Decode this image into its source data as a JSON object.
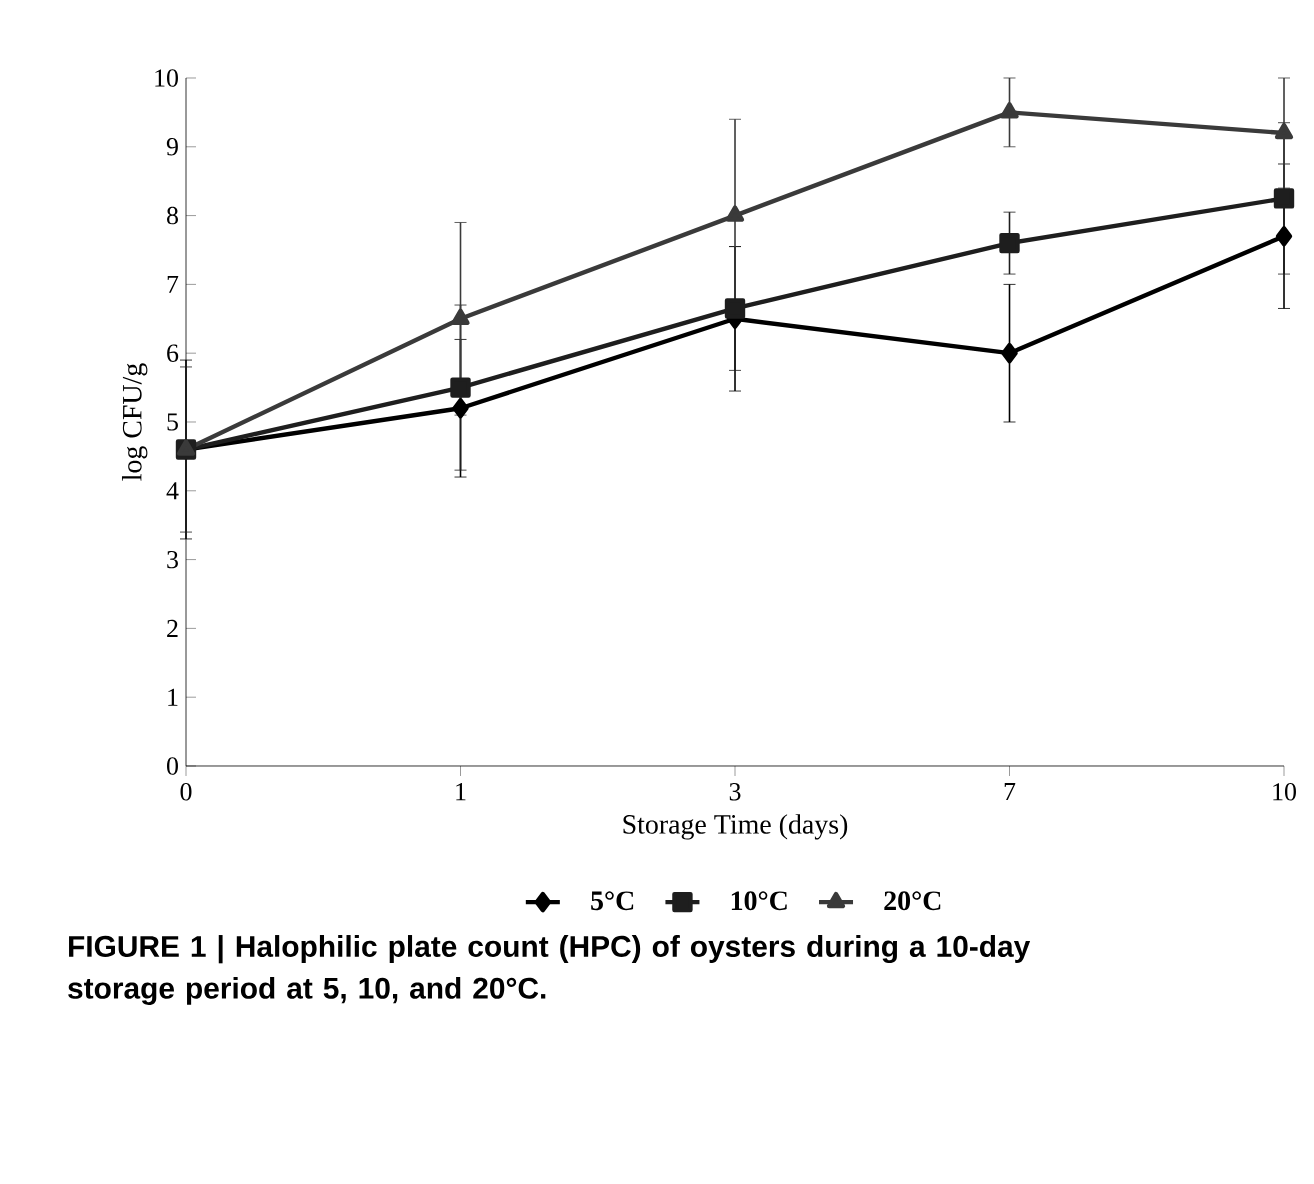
{
  "chart_data": {
    "type": "line",
    "xlabel": "Storage Time (days)",
    "ylabel": "log CFU/g",
    "categories": [
      "0",
      "1",
      "3",
      "7",
      "10"
    ],
    "ylim": [
      0,
      10
    ],
    "yticks": [
      0,
      1,
      2,
      3,
      4,
      5,
      6,
      7,
      8,
      9,
      10
    ],
    "legend": "bottom",
    "grid": false,
    "line_style": "solid",
    "series": [
      {
        "name": "5°C",
        "color": "#000000",
        "marker": "diamond",
        "values": [
          4.6,
          5.2,
          6.5,
          6.0,
          7.7
        ],
        "errors": [
          1.3,
          1.0,
          1.05,
          1.0,
          1.05
        ]
      },
      {
        "name": "10°C",
        "color": "#1e1e1e",
        "marker": "square",
        "values": [
          4.6,
          5.5,
          6.65,
          7.6,
          8.25
        ],
        "errors": [
          1.2,
          1.2,
          0.9,
          0.45,
          1.1
        ]
      },
      {
        "name": "20°C",
        "color": "#3a3a3a",
        "marker": "triangle",
        "values": [
          4.6,
          6.5,
          8.0,
          9.5,
          9.2
        ],
        "errors": [
          null,
          1.4,
          1.4,
          0.5,
          0.8
        ]
      }
    ],
    "annotations": [
      "FIGURE 1 | Halophilic plate count (HPC) of oysters during a 10-day storage period at 5, 10, and 20°C."
    ]
  }
}
